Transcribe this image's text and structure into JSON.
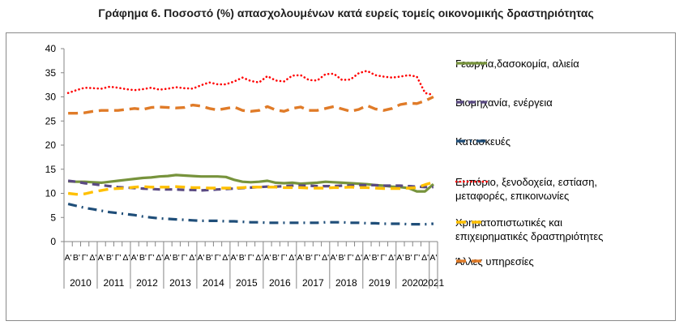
{
  "title": "Γράφημα 6. Ποσοστό (%) απασχολουμένων κατά ευρείς τομείς οικονομικής δραστηριότητας",
  "chart_data": {
    "type": "line",
    "ylim": [
      0,
      40
    ],
    "yticks": [
      0,
      5,
      10,
      15,
      20,
      25,
      30,
      35,
      40
    ],
    "quarters": [
      "Α'",
      "Β'",
      "Γ'",
      "Δ'",
      "Α'",
      "Β'",
      "Γ'",
      "Δ'",
      "Α'",
      "Β'",
      "Γ'",
      "Δ'",
      "Α'",
      "Β'",
      "Γ'",
      "Δ'",
      "Α'",
      "Β'",
      "Γ'",
      "Δ'",
      "Α'",
      "Β'",
      "Γ'",
      "Δ'",
      "Α'",
      "Β'",
      "Γ'",
      "Δ'",
      "Α'",
      "Β'",
      "Γ'",
      "Δ'",
      "Α'",
      "Β'",
      "Γ'",
      "Δ'",
      "Α'",
      "Β'",
      "Γ'",
      "Δ'",
      "Α'",
      "Β'",
      "Γ'",
      "Δ'",
      "Α'"
    ],
    "years": [
      "2010",
      "2011",
      "2012",
      "2013",
      "2014",
      "2015",
      "2016",
      "2017",
      "2018",
      "2019",
      "2020",
      "2021"
    ],
    "grid": false,
    "legend_position": "right",
    "series": [
      {
        "name": "Γεωργία,δασοκομία, αλιεία",
        "color": "#77933c",
        "style": "solid",
        "values": [
          12.5,
          12.4,
          12.4,
          12.3,
          12.2,
          12.4,
          12.6,
          12.8,
          13.0,
          13.2,
          13.3,
          13.5,
          13.6,
          13.8,
          13.7,
          13.6,
          13.5,
          13.5,
          13.5,
          13.4,
          12.8,
          12.4,
          12.3,
          12.4,
          12.6,
          12.2,
          12.1,
          12.2,
          12.0,
          12.1,
          12.2,
          12.4,
          12.3,
          12.2,
          12.1,
          12.0,
          11.9,
          11.7,
          11.6,
          11.4,
          11.3,
          11.1,
          10.4,
          10.4,
          11.9
        ]
      },
      {
        "name": "Βιομηχανία, ενέργεια",
        "color": "#5a4a82",
        "style": "dash",
        "values": [
          12.6,
          12.4,
          12.1,
          11.9,
          11.7,
          11.5,
          11.3,
          11.2,
          11.1,
          11.0,
          10.9,
          10.8,
          10.8,
          10.8,
          10.7,
          10.7,
          10.6,
          10.7,
          10.8,
          10.9,
          11.0,
          11.1,
          11.2,
          11.3,
          11.4,
          11.4,
          11.5,
          11.6,
          11.6,
          11.6,
          11.5,
          11.5,
          11.5,
          11.6,
          11.6,
          11.7,
          11.7,
          11.7,
          11.6,
          11.6,
          11.6,
          11.5,
          11.4,
          11.3,
          11.3
        ]
      },
      {
        "name": "Κατασκευές",
        "color": "#1f4e79",
        "style": "dashdot",
        "values": [
          7.8,
          7.4,
          7.0,
          6.7,
          6.4,
          6.1,
          5.9,
          5.7,
          5.5,
          5.2,
          5.0,
          4.8,
          4.7,
          4.6,
          4.5,
          4.4,
          4.3,
          4.3,
          4.3,
          4.2,
          4.2,
          4.1,
          4.0,
          4.0,
          3.9,
          3.9,
          3.9,
          3.9,
          3.9,
          3.9,
          3.9,
          4.0,
          4.0,
          4.0,
          3.9,
          3.9,
          3.8,
          3.8,
          3.7,
          3.7,
          3.7,
          3.6,
          3.6,
          3.6,
          3.7
        ]
      },
      {
        "name": "Εμπόριο, ξενοδοχεία, εστίαση, μεταφορές, επικοινωνίες",
        "color": "#ff0000",
        "style": "dot",
        "values": [
          30.8,
          31.4,
          31.9,
          31.8,
          31.7,
          32.1,
          31.9,
          31.6,
          31.4,
          31.6,
          31.9,
          31.5,
          31.7,
          32.0,
          31.8,
          31.7,
          32.4,
          33.0,
          32.6,
          32.6,
          33.2,
          34.0,
          33.3,
          33.0,
          34.3,
          33.4,
          33.2,
          34.4,
          34.5,
          33.5,
          33.4,
          34.7,
          34.8,
          33.5,
          33.6,
          34.9,
          35.4,
          34.5,
          34.2,
          34.0,
          34.2,
          34.5,
          34.2,
          30.8,
          30.4
        ]
      },
      {
        "name": "Χρηματοπιστωτικές και επιχειρηματικές δραστηριότητες",
        "color": "#ffc000",
        "style": "longdash",
        "values": [
          10.0,
          9.8,
          9.9,
          10.3,
          10.6,
          10.9,
          11.0,
          11.1,
          11.3,
          11.4,
          11.3,
          11.3,
          11.3,
          11.4,
          11.3,
          11.2,
          11.2,
          11.1,
          11.1,
          11.1,
          11.1,
          11.2,
          11.3,
          11.3,
          11.3,
          11.3,
          11.2,
          11.2,
          11.2,
          11.1,
          11.1,
          11.1,
          11.2,
          11.2,
          11.3,
          11.2,
          11.2,
          11.1,
          11.0,
          11.0,
          11.0,
          11.1,
          11.2,
          11.8,
          12.3
        ]
      },
      {
        "name": "Άλλες υπηρεσίες",
        "color": "#e07b28",
        "style": "longdash",
        "values": [
          26.6,
          26.6,
          26.7,
          27.0,
          27.2,
          27.2,
          27.2,
          27.4,
          27.6,
          27.4,
          27.8,
          27.9,
          27.8,
          27.7,
          27.8,
          28.3,
          28.1,
          27.6,
          27.3,
          27.6,
          27.9,
          27.2,
          27.0,
          27.2,
          28.0,
          27.3,
          27.0,
          27.6,
          27.9,
          27.2,
          27.2,
          27.6,
          28.0,
          27.5,
          27.0,
          27.4,
          28.2,
          27.5,
          27.2,
          27.6,
          28.4,
          28.7,
          28.6,
          29.2,
          30.0
        ]
      }
    ]
  }
}
